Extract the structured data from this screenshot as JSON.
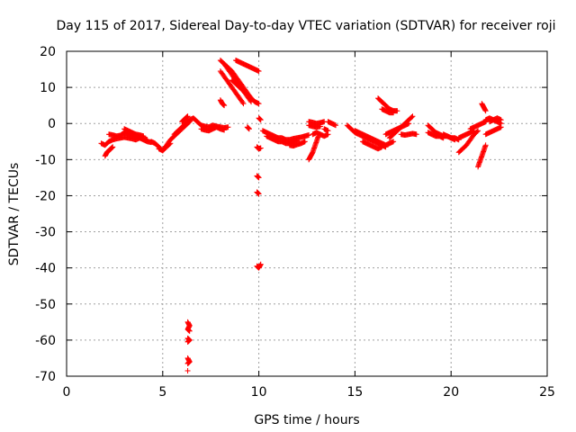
{
  "chart_data": {
    "type": "scatter",
    "title": "Day 115 of 2017, Sidereal Day-to-day VTEC variation (SDTVAR) for receiver roji",
    "xlabel": "GPS time / hours",
    "ylabel": "SDTVAR / TECUs",
    "xlim": [
      0,
      25
    ],
    "ylim": [
      -70,
      20
    ],
    "xticks": [
      0,
      5,
      10,
      15,
      20,
      25
    ],
    "yticks": [
      -70,
      -60,
      -50,
      -40,
      -30,
      -20,
      -10,
      0,
      10,
      20
    ],
    "grid": true,
    "marker": "+",
    "series": [
      {
        "name": "SDTVAR",
        "color": "#ff0000",
        "segments": [
          {
            "x": [
              1.8,
              2.0,
              2.2,
              2.4,
              2.6,
              2.8,
              3.0,
              3.2,
              3.4,
              3.6,
              3.8,
              4.0,
              4.2
            ],
            "y": [
              -5.5,
              -6.0,
              -5.0,
              -4.5,
              -4.2,
              -4.0,
              -3.8,
              -4.0,
              -4.2,
              -4.5,
              -4.0,
              -4.2,
              -4.5
            ]
          },
          {
            "x": [
              2.0,
              2.1,
              2.2,
              2.3,
              2.4
            ],
            "y": [
              -9.0,
              -8.0,
              -7.5,
              -7.0,
              -6.5
            ]
          },
          {
            "x": [
              2.2,
              2.4,
              2.6,
              2.8,
              3.0,
              3.2,
              3.4,
              3.6,
              3.8,
              4.0,
              4.2,
              4.4
            ],
            "y": [
              -3.0,
              -3.2,
              -3.5,
              -3.3,
              -2.5,
              -3.0,
              -3.2,
              -3.5,
              -4.0,
              -4.5,
              -5.0,
              -5.2
            ]
          },
          {
            "x": [
              3.0,
              3.2,
              3.4,
              3.6,
              3.8,
              4.0
            ],
            "y": [
              -1.5,
              -2.0,
              -2.5,
              -3.0,
              -3.2,
              -3.5
            ]
          },
          {
            "x": [
              4.4,
              4.6,
              4.8,
              5.0,
              5.2,
              5.4,
              5.6,
              5.8,
              6.0,
              6.2,
              6.4
            ],
            "y": [
              -5.0,
              -5.5,
              -6.5,
              -7.5,
              -6.0,
              -4.5,
              -3.5,
              -2.5,
              -1.5,
              -0.5,
              0.5
            ]
          },
          {
            "x": [
              4.8,
              5.0,
              5.2,
              5.4
            ],
            "y": [
              -7.0,
              -7.5,
              -6.5,
              -5.5
            ]
          },
          {
            "x": [
              5.6,
              5.8,
              6.0,
              6.2,
              6.4,
              6.6,
              6.8,
              7.0
            ],
            "y": [
              -3.0,
              -2.0,
              -1.0,
              0.0,
              1.0,
              1.5,
              0.5,
              -0.5
            ]
          },
          {
            "x": [
              6.0,
              6.1,
              6.2,
              6.3
            ],
            "y": [
              0.5,
              1.0,
              1.5,
              2.0
            ]
          },
          {
            "x": [
              6.3,
              6.4,
              6.3,
              6.4
            ],
            "y": [
              -55.0,
              -56.0,
              -57.0,
              -57.5
            ]
          },
          {
            "x": [
              6.3,
              6.4,
              6.3
            ],
            "y": [
              -59.5,
              -60.0,
              -60.5
            ]
          },
          {
            "x": [
              6.3,
              6.4,
              6.3
            ],
            "y": [
              -65.0,
              -66.0,
              -66.5
            ]
          },
          {
            "x": [
              6.3
            ],
            "y": [
              -68.5
            ]
          },
          {
            "x": [
              7.0,
              7.2,
              7.4,
              7.6,
              7.8,
              8.0,
              8.2
            ],
            "y": [
              -1.5,
              -1.8,
              -2.0,
              -1.5,
              -1.0,
              -1.5,
              -1.8
            ]
          },
          {
            "x": [
              7.0,
              7.2,
              7.4,
              7.6,
              7.8,
              8.0,
              8.2,
              8.4
            ],
            "y": [
              -0.5,
              -0.8,
              -1.0,
              -0.5,
              -0.8,
              -1.0,
              -1.2,
              -1.0
            ]
          },
          {
            "x": [
              8.0,
              8.1,
              8.2
            ],
            "y": [
              6.5,
              5.5,
              5.0
            ]
          },
          {
            "x": [
              8.0,
              8.2,
              8.4,
              8.6,
              8.8,
              9.0,
              9.2,
              9.4,
              9.6
            ],
            "y": [
              17.5,
              16.5,
              15.0,
              13.5,
              12.0,
              10.5,
              9.0,
              7.5,
              6.0
            ]
          },
          {
            "x": [
              8.0,
              8.2,
              8.4,
              8.6,
              8.8,
              9.0,
              9.2
            ],
            "y": [
              14.5,
              13.0,
              11.5,
              10.0,
              8.5,
              7.0,
              5.5
            ]
          },
          {
            "x": [
              8.2,
              8.4,
              8.6,
              8.8,
              9.0,
              9.2,
              9.4,
              9.6,
              9.8,
              10.0
            ],
            "y": [
              16.5,
              15.5,
              14.5,
              13.0,
              11.5,
              10.0,
              8.5,
              7.0,
              6.0,
              5.5
            ]
          },
          {
            "x": [
              8.8,
              9.0,
              9.2,
              9.4,
              9.6,
              9.8,
              10.0
            ],
            "y": [
              17.5,
              17.0,
              16.5,
              16.0,
              15.5,
              15.0,
              14.5
            ]
          },
          {
            "x": [
              8.6,
              8.8,
              9.0,
              9.2,
              9.4,
              9.6
            ],
            "y": [
              12.0,
              11.0,
              10.0,
              9.0,
              8.0,
              7.0
            ]
          },
          {
            "x": [
              9.4,
              9.5
            ],
            "y": [
              -1.0,
              -1.5
            ]
          },
          {
            "x": [
              9.9,
              10.0,
              10.1
            ],
            "y": [
              -6.5,
              -7.0,
              -6.8
            ]
          },
          {
            "x": [
              9.9,
              10.0
            ],
            "y": [
              -14.5,
              -15.0
            ]
          },
          {
            "x": [
              9.9,
              10.0
            ],
            "y": [
              -19.0,
              -19.5
            ]
          },
          {
            "x": [
              9.9,
              10.0,
              10.1
            ],
            "y": [
              -39.5,
              -40.0,
              -39.0
            ]
          },
          {
            "x": [
              10.0,
              10.1
            ],
            "y": [
              1.5,
              1.0
            ]
          },
          {
            "x": [
              10.2,
              10.4,
              10.6,
              10.8,
              11.0,
              11.2,
              11.4,
              11.6,
              11.8,
              12.0,
              12.2,
              12.4,
              12.6
            ],
            "y": [
              -2.0,
              -2.5,
              -3.0,
              -3.5,
              -4.0,
              -4.0,
              -4.5,
              -4.5,
              -4.2,
              -4.0,
              -3.8,
              -3.5,
              -3.2
            ]
          },
          {
            "x": [
              10.4,
              10.6,
              10.8,
              11.0,
              11.2,
              11.4,
              11.6,
              11.8,
              12.0
            ],
            "y": [
              -3.5,
              -4.0,
              -4.5,
              -5.0,
              -5.0,
              -5.5,
              -5.5,
              -5.0,
              -4.8
            ]
          },
          {
            "x": [
              11.6,
              11.8,
              12.0,
              12.2,
              12.4
            ],
            "y": [
              -6.0,
              -6.2,
              -5.8,
              -5.5,
              -5.0
            ]
          },
          {
            "x": [
              12.6,
              12.7,
              12.8,
              12.9,
              13.0,
              13.1
            ],
            "y": [
              -10.0,
              -9.0,
              -8.0,
              -6.5,
              -5.0,
              -3.5
            ]
          },
          {
            "x": [
              12.8,
              13.0,
              13.2,
              13.4,
              13.6
            ],
            "y": [
              -3.0,
              -2.5,
              -3.0,
              -3.5,
              -3.0
            ]
          },
          {
            "x": [
              12.6,
              12.8,
              13.0,
              13.2,
              13.4
            ],
            "y": [
              0.5,
              0.3,
              0.0,
              0.2,
              0.5
            ]
          },
          {
            "x": [
              12.6,
              12.8,
              13.0,
              13.2
            ],
            "y": [
              -0.5,
              -0.8,
              -1.0,
              -0.8
            ]
          },
          {
            "x": [
              13.4,
              13.6
            ],
            "y": [
              -1.5,
              -2.0
            ]
          },
          {
            "x": [
              13.6,
              13.8,
              14.0
            ],
            "y": [
              0.5,
              0.0,
              -0.5
            ]
          },
          {
            "x": [
              14.6,
              14.8,
              15.0,
              15.2,
              15.4,
              15.6,
              15.8,
              16.0,
              16.2,
              16.4,
              16.6
            ],
            "y": [
              -0.5,
              -1.5,
              -2.5,
              -3.0,
              -3.5,
              -4.0,
              -4.5,
              -5.0,
              -5.5,
              -6.0,
              -6.5
            ]
          },
          {
            "x": [
              15.0,
              15.2,
              15.4,
              15.6,
              15.8,
              16.0,
              16.2,
              16.4,
              16.6,
              16.8,
              17.0
            ],
            "y": [
              -2.0,
              -2.5,
              -3.0,
              -3.5,
              -4.0,
              -4.5,
              -5.0,
              -5.5,
              -6.0,
              -5.5,
              -5.0
            ]
          },
          {
            "x": [
              15.4,
              15.6,
              15.8,
              16.0,
              16.2,
              16.4
            ],
            "y": [
              -5.0,
              -5.5,
              -6.0,
              -6.5,
              -7.0,
              -6.5
            ]
          },
          {
            "x": [
              16.2,
              16.4,
              16.6,
              16.8,
              17.0,
              17.2
            ],
            "y": [
              7.0,
              6.0,
              5.0,
              4.0,
              3.5,
              3.5
            ]
          },
          {
            "x": [
              16.4,
              16.6,
              16.8,
              17.0
            ],
            "y": [
              4.0,
              3.5,
              3.0,
              3.0
            ]
          },
          {
            "x": [
              16.8,
              17.0,
              17.2,
              17.4,
              17.6,
              17.8,
              18.0
            ],
            "y": [
              -4.0,
              -3.0,
              -2.0,
              -1.0,
              0.0,
              1.0,
              2.0
            ]
          },
          {
            "x": [
              16.6,
              16.8,
              17.0,
              17.2,
              17.4,
              17.6,
              17.8
            ],
            "y": [
              -3.0,
              -2.5,
              -2.0,
              -1.5,
              -1.0,
              -0.5,
              0.0
            ]
          },
          {
            "x": [
              17.4,
              17.6,
              17.8,
              18.0,
              18.2
            ],
            "y": [
              -3.0,
              -3.2,
              -3.0,
              -2.8,
              -3.0
            ]
          },
          {
            "x": [
              18.8,
              19.0,
              19.2,
              19.4,
              19.6,
              19.8,
              20.0,
              20.2
            ],
            "y": [
              -0.5,
              -1.5,
              -2.5,
              -3.0,
              -3.5,
              -3.5,
              -4.0,
              -4.5
            ]
          },
          {
            "x": [
              18.8,
              19.0,
              19.2,
              19.4,
              19.6
            ],
            "y": [
              -2.5,
              -3.0,
              -3.5,
              -3.5,
              -4.0
            ]
          },
          {
            "x": [
              19.6,
              19.8,
              20.0,
              20.2,
              20.4
            ],
            "y": [
              -3.0,
              -3.5,
              -4.0,
              -4.0,
              -4.5
            ]
          },
          {
            "x": [
              20.4,
              20.6,
              20.8,
              21.0,
              21.2,
              21.4
            ],
            "y": [
              -8.0,
              -7.0,
              -6.0,
              -4.5,
              -3.0,
              -2.0
            ]
          },
          {
            "x": [
              20.4,
              20.6,
              20.8,
              21.0,
              21.2
            ],
            "y": [
              -4.0,
              -3.5,
              -3.0,
              -2.5,
              -2.0
            ]
          },
          {
            "x": [
              21.0,
              21.2,
              21.4,
              21.6,
              21.8
            ],
            "y": [
              -1.5,
              -1.0,
              -0.5,
              0.0,
              0.5
            ]
          },
          {
            "x": [
              21.4,
              21.5,
              21.6,
              21.7,
              21.8
            ],
            "y": [
              -12.0,
              -10.5,
              -9.0,
              -7.5,
              -6.0
            ]
          },
          {
            "x": [
              21.6,
              21.7,
              21.8
            ],
            "y": [
              5.5,
              4.5,
              3.5
            ]
          },
          {
            "x": [
              21.8,
              22.0,
              22.2,
              22.4,
              22.6
            ],
            "y": [
              1.0,
              1.5,
              1.0,
              0.5,
              0.0
            ]
          },
          {
            "x": [
              21.8,
              22.0,
              22.2,
              22.4,
              22.6
            ],
            "y": [
              -3.0,
              -2.5,
              -2.0,
              -1.5,
              -1.0
            ]
          },
          {
            "x": [
              22.0,
              22.2,
              22.4,
              22.6
            ],
            "y": [
              0.5,
              1.0,
              1.5,
              1.0
            ]
          }
        ]
      }
    ]
  }
}
